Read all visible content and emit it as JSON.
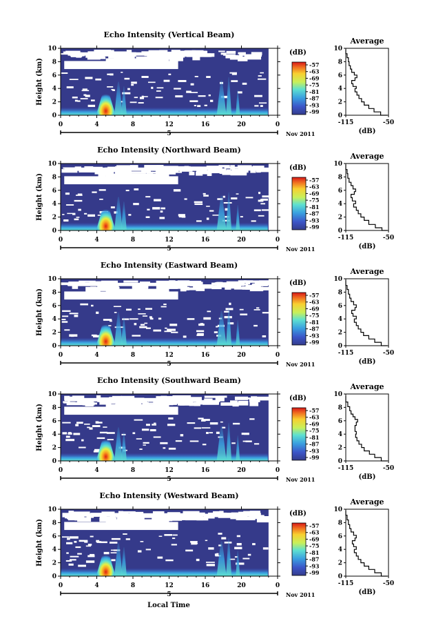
{
  "figure": {
    "xaxis_label": "Local Time",
    "colorbar_unit": "(dB)",
    "profile_title": "Average",
    "profile_xlabel": "(dB)",
    "date_label": "Nov 2011",
    "day_marker": "5"
  },
  "chart_data": [
    {
      "type": "heatmap",
      "title": "Echo Intensity (Vertical Beam)",
      "ylabel": "Height (km)",
      "x_ticks": [
        "0",
        "4",
        "8",
        "12",
        "16",
        "20",
        "0"
      ],
      "xlim": [
        0,
        24
      ],
      "y_ticks": [
        "0",
        "2",
        "4",
        "6",
        "8",
        "10"
      ],
      "ylim": [
        0,
        10
      ],
      "colorbar": {
        "unit": "(dB)",
        "ticks": [
          "-57",
          "-63",
          "-69",
          "-75",
          "-81",
          "-87",
          "-93",
          "-99"
        ]
      },
      "profile": {
        "title": "Average",
        "xlabel": "(dB)",
        "x_ticks": [
          "-115",
          "-50"
        ],
        "xlim": [
          -115,
          -50
        ],
        "y_ticks": [
          "0",
          "2",
          "4",
          "6",
          "8",
          "10"
        ],
        "ylim": [
          0,
          10
        ],
        "points": [
          [
            -52,
            0
          ],
          [
            -62,
            0.5
          ],
          [
            -72,
            1.0
          ],
          [
            -80,
            1.5
          ],
          [
            -87,
            2.0
          ],
          [
            -91,
            2.5
          ],
          [
            -95,
            3.0
          ],
          [
            -98,
            3.5
          ],
          [
            -101,
            4.0
          ],
          [
            -99,
            4.3
          ],
          [
            -104,
            4.7
          ],
          [
            -106,
            5.2
          ],
          [
            -101,
            5.6
          ],
          [
            -98,
            6.0
          ],
          [
            -102,
            6.4
          ],
          [
            -106,
            6.9
          ],
          [
            -108,
            7.4
          ],
          [
            -110,
            8.0
          ],
          [
            -111,
            8.6
          ],
          [
            -113,
            9.2
          ],
          [
            -115,
            9.8
          ]
        ]
      },
      "date_label": "Nov 2011",
      "day_marker": "5"
    },
    {
      "type": "heatmap",
      "title": "Echo Intensity (Northward Beam)",
      "ylabel": "Height (km)",
      "x_ticks": [
        "0",
        "4",
        "8",
        "12",
        "16",
        "20",
        "0"
      ],
      "xlim": [
        0,
        24
      ],
      "y_ticks": [
        "0",
        "2",
        "4",
        "6",
        "8",
        "10"
      ],
      "ylim": [
        0,
        10
      ],
      "colorbar": {
        "unit": "(dB)",
        "ticks": [
          "-57",
          "-63",
          "-69",
          "-75",
          "-81",
          "-87",
          "-93",
          "-99"
        ]
      },
      "profile": {
        "title": "Average",
        "xlabel": "(dB)",
        "x_ticks": [
          "-115",
          "-50"
        ],
        "xlim": [
          -115,
          -50
        ],
        "y_ticks": [
          "0",
          "2",
          "4",
          "6",
          "8",
          "10"
        ],
        "ylim": [
          0,
          10
        ],
        "points": [
          [
            -52,
            0
          ],
          [
            -60,
            0.4
          ],
          [
            -70,
            0.9
          ],
          [
            -80,
            1.5
          ],
          [
            -87,
            2.0
          ],
          [
            -92,
            2.5
          ],
          [
            -96,
            3.0
          ],
          [
            -99,
            3.5
          ],
          [
            -103,
            4.0
          ],
          [
            -100,
            4.4
          ],
          [
            -105,
            4.9
          ],
          [
            -107,
            5.4
          ],
          [
            -102,
            5.8
          ],
          [
            -100,
            6.2
          ],
          [
            -104,
            6.7
          ],
          [
            -107,
            7.2
          ],
          [
            -110,
            7.8
          ],
          [
            -112,
            8.5
          ],
          [
            -113,
            9.1
          ],
          [
            -115,
            9.8
          ]
        ]
      },
      "date_label": "Nov 2011",
      "day_marker": "5"
    },
    {
      "type": "heatmap",
      "title": "Echo Intensity (Eastward Beam)",
      "ylabel": "Height (km)",
      "x_ticks": [
        "0",
        "4",
        "8",
        "12",
        "16",
        "20",
        "0"
      ],
      "xlim": [
        0,
        24
      ],
      "y_ticks": [
        "0",
        "2",
        "4",
        "6",
        "8",
        "10"
      ],
      "ylim": [
        0,
        10
      ],
      "colorbar": {
        "unit": "(dB)",
        "ticks": [
          "-57",
          "-63",
          "-69",
          "-75",
          "-81",
          "-87",
          "-93",
          "-99"
        ]
      },
      "profile": {
        "title": "Average",
        "xlabel": "(dB)",
        "x_ticks": [
          "-115",
          "-50"
        ],
        "xlim": [
          -115,
          -50
        ],
        "y_ticks": [
          "0",
          "2",
          "4",
          "6",
          "8",
          "10"
        ],
        "ylim": [
          0,
          10
        ],
        "points": [
          [
            -52,
            0
          ],
          [
            -61,
            0.5
          ],
          [
            -71,
            1.0
          ],
          [
            -80,
            1.5
          ],
          [
            -88,
            2.0
          ],
          [
            -92,
            2.5
          ],
          [
            -96,
            3.0
          ],
          [
            -99,
            3.5
          ],
          [
            -102,
            4.0
          ],
          [
            -99,
            4.4
          ],
          [
            -104,
            4.8
          ],
          [
            -106,
            5.3
          ],
          [
            -101,
            5.7
          ],
          [
            -99,
            6.1
          ],
          [
            -103,
            6.6
          ],
          [
            -107,
            7.1
          ],
          [
            -109,
            7.7
          ],
          [
            -111,
            8.4
          ],
          [
            -113,
            9.0
          ],
          [
            -115,
            9.8
          ]
        ]
      },
      "date_label": "Nov 2011",
      "day_marker": "5"
    },
    {
      "type": "heatmap",
      "title": "Echo Intensity (Southward Beam)",
      "ylabel": "Height (km)",
      "x_ticks": [
        "0",
        "4",
        "8",
        "12",
        "16",
        "20",
        "0"
      ],
      "xlim": [
        0,
        24
      ],
      "y_ticks": [
        "0",
        "2",
        "4",
        "6",
        "8",
        "10"
      ],
      "ylim": [
        0,
        10
      ],
      "colorbar": {
        "unit": "(dB)",
        "ticks": [
          "-57",
          "-63",
          "-69",
          "-75",
          "-81",
          "-87",
          "-93",
          "-99"
        ]
      },
      "profile": {
        "title": "Average",
        "xlabel": "(dB)",
        "x_ticks": [
          "-115",
          "-50"
        ],
        "xlim": [
          -115,
          -50
        ],
        "y_ticks": [
          "0",
          "2",
          "4",
          "6",
          "8",
          "10"
        ],
        "ylim": [
          0,
          10
        ],
        "points": [
          [
            -52,
            0
          ],
          [
            -61,
            0.5
          ],
          [
            -71,
            1.0
          ],
          [
            -79,
            1.5
          ],
          [
            -87,
            2.0
          ],
          [
            -91,
            2.5
          ],
          [
            -95,
            3.0
          ],
          [
            -98,
            3.5
          ],
          [
            -100,
            4.0
          ],
          [
            -99,
            4.4
          ],
          [
            -101,
            4.8
          ],
          [
            -101,
            5.3
          ],
          [
            -99,
            5.8
          ],
          [
            -97,
            6.2
          ],
          [
            -101,
            6.6
          ],
          [
            -104,
            7.0
          ],
          [
            -107,
            7.5
          ],
          [
            -109,
            8.1
          ],
          [
            -112,
            8.8
          ],
          [
            -115,
            9.7
          ]
        ]
      },
      "date_label": "Nov 2011",
      "day_marker": "5"
    },
    {
      "type": "heatmap",
      "title": "Echo Intensity (Westward Beam)",
      "ylabel": "Height (km)",
      "x_ticks": [
        "0",
        "4",
        "8",
        "12",
        "16",
        "20",
        "0"
      ],
      "xlim": [
        0,
        24
      ],
      "y_ticks": [
        "0",
        "2",
        "4",
        "6",
        "8",
        "10"
      ],
      "ylim": [
        0,
        10
      ],
      "colorbar": {
        "unit": "(dB)",
        "ticks": [
          "-57",
          "-63",
          "-69",
          "-75",
          "-81",
          "-87",
          "-93",
          "-99"
        ]
      },
      "profile": {
        "title": "Average",
        "xlabel": "(dB)",
        "x_ticks": [
          "-115",
          "-50"
        ],
        "xlim": [
          -115,
          -50
        ],
        "y_ticks": [
          "0",
          "2",
          "4",
          "6",
          "8",
          "10"
        ],
        "ylim": [
          0,
          10
        ],
        "points": [
          [
            -52,
            0
          ],
          [
            -61,
            0.5
          ],
          [
            -71,
            1.0
          ],
          [
            -80,
            1.5
          ],
          [
            -87,
            2.0
          ],
          [
            -92,
            2.5
          ],
          [
            -96,
            3.0
          ],
          [
            -99,
            3.5
          ],
          [
            -102,
            4.0
          ],
          [
            -99,
            4.4
          ],
          [
            -103,
            4.8
          ],
          [
            -105,
            5.3
          ],
          [
            -101,
            5.7
          ],
          [
            -99,
            6.1
          ],
          [
            -103,
            6.6
          ],
          [
            -107,
            7.1
          ],
          [
            -109,
            7.7
          ],
          [
            -111,
            8.4
          ],
          [
            -113,
            9.1
          ],
          [
            -115,
            9.8
          ]
        ]
      },
      "date_label": "Nov 2011",
      "day_marker": "5"
    }
  ]
}
